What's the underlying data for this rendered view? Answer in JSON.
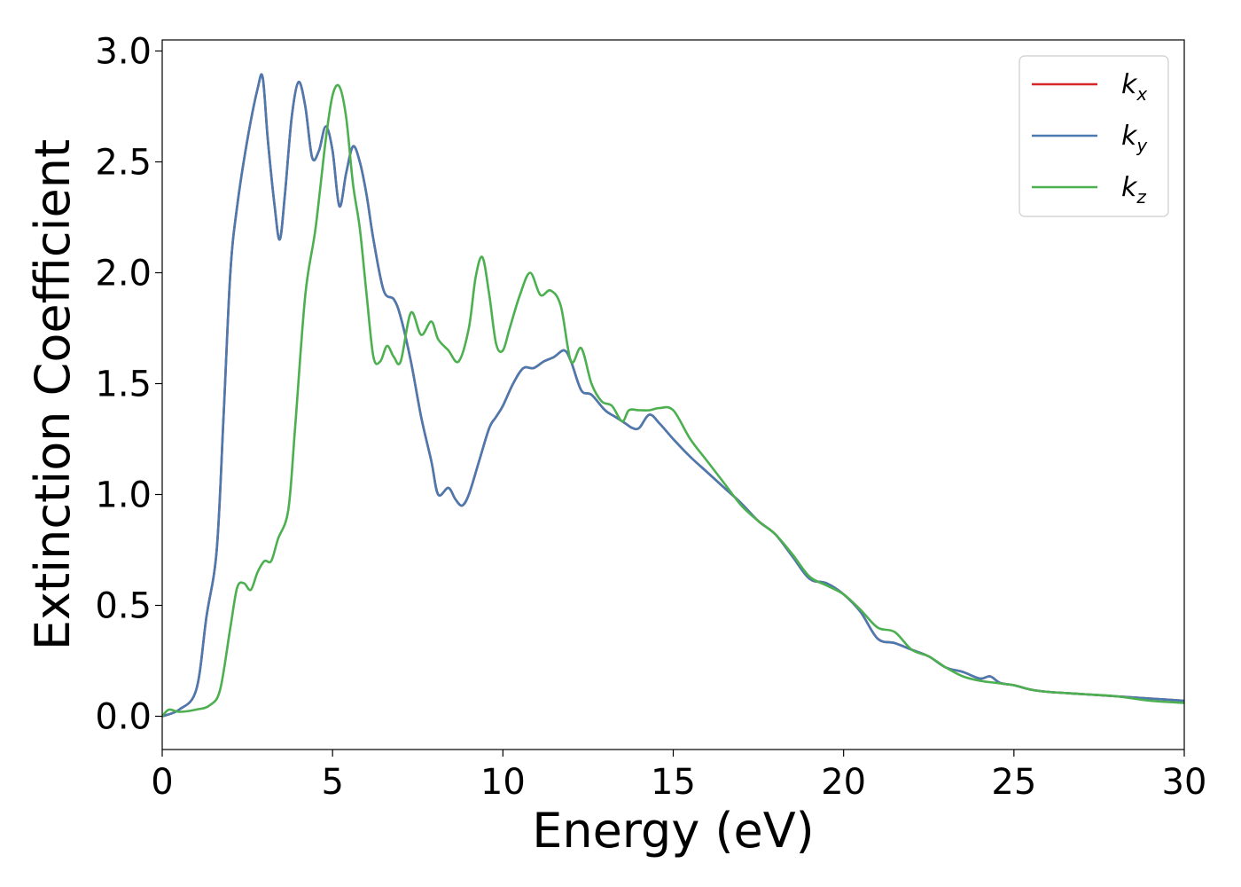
{
  "chart_data": {
    "type": "line",
    "title": "",
    "xlabel": "Energy (eV)",
    "ylabel": "Extinction Coefficient",
    "xlim": [
      0,
      30
    ],
    "ylim": [
      -0.15,
      3.05
    ],
    "xticks": [
      0,
      5,
      10,
      15,
      20,
      25,
      30
    ],
    "xtick_labels": [
      "0",
      "5",
      "10",
      "15",
      "20",
      "25",
      "30"
    ],
    "yticks": [
      0.0,
      0.5,
      1.0,
      1.5,
      2.0,
      2.5,
      3.0
    ],
    "ytick_labels": [
      "0.0",
      "0.5",
      "1.0",
      "1.5",
      "2.0",
      "2.5",
      "3.0"
    ],
    "grid": false,
    "legend_position": "top-right",
    "series": [
      {
        "name": "k_x",
        "legend_base": "k",
        "legend_sub": "x",
        "color": "#d62728",
        "x": [
          0,
          0.5,
          1.0,
          1.3,
          1.6,
          1.8,
          2.0,
          2.2,
          2.5,
          2.8,
          2.95,
          3.1,
          3.3,
          3.45,
          3.6,
          3.8,
          4.0,
          4.2,
          4.4,
          4.6,
          4.8,
          5.0,
          5.2,
          5.4,
          5.6,
          5.8,
          6.0,
          6.2,
          6.5,
          6.8,
          7.0,
          7.3,
          7.6,
          7.9,
          8.1,
          8.4,
          8.6,
          8.8,
          9.0,
          9.3,
          9.6,
          9.8,
          10.0,
          10.3,
          10.6,
          10.9,
          11.2,
          11.5,
          11.8,
          12.0,
          12.3,
          12.6,
          13.0,
          13.3,
          13.6,
          13.8,
          14.0,
          14.3,
          14.6,
          15.0,
          15.5,
          16.0,
          16.5,
          17.0,
          17.5,
          18.0,
          18.5,
          19.0,
          19.5,
          20.0,
          20.5,
          21.0,
          21.5,
          22.0,
          22.5,
          23.0,
          23.5,
          24.0,
          24.3,
          24.6,
          25.0,
          25.5,
          26.0,
          27.0,
          28.0,
          29.0,
          30.0
        ],
        "y": [
          0.0,
          0.03,
          0.12,
          0.45,
          0.75,
          1.35,
          2.0,
          2.3,
          2.6,
          2.83,
          2.88,
          2.6,
          2.3,
          2.15,
          2.35,
          2.7,
          2.86,
          2.75,
          2.52,
          2.55,
          2.66,
          2.55,
          2.3,
          2.45,
          2.57,
          2.5,
          2.35,
          2.15,
          1.92,
          1.88,
          1.8,
          1.6,
          1.35,
          1.15,
          1.0,
          1.03,
          0.98,
          0.95,
          1.0,
          1.15,
          1.3,
          1.35,
          1.4,
          1.5,
          1.57,
          1.57,
          1.6,
          1.62,
          1.65,
          1.6,
          1.47,
          1.45,
          1.38,
          1.35,
          1.32,
          1.3,
          1.3,
          1.36,
          1.32,
          1.25,
          1.17,
          1.1,
          1.03,
          0.96,
          0.88,
          0.82,
          0.72,
          0.62,
          0.6,
          0.55,
          0.47,
          0.35,
          0.33,
          0.3,
          0.27,
          0.22,
          0.2,
          0.17,
          0.18,
          0.15,
          0.14,
          0.12,
          0.11,
          0.1,
          0.09,
          0.08,
          0.07
        ]
      },
      {
        "name": "k_y",
        "legend_base": "k",
        "legend_sub": "y",
        "color": "#4a7ab0",
        "x": [
          0,
          0.5,
          1.0,
          1.3,
          1.6,
          1.8,
          2.0,
          2.2,
          2.5,
          2.8,
          2.95,
          3.1,
          3.3,
          3.45,
          3.6,
          3.8,
          4.0,
          4.2,
          4.4,
          4.6,
          4.8,
          5.0,
          5.2,
          5.4,
          5.6,
          5.8,
          6.0,
          6.2,
          6.5,
          6.8,
          7.0,
          7.3,
          7.6,
          7.9,
          8.1,
          8.4,
          8.6,
          8.8,
          9.0,
          9.3,
          9.6,
          9.8,
          10.0,
          10.3,
          10.6,
          10.9,
          11.2,
          11.5,
          11.8,
          12.0,
          12.3,
          12.6,
          13.0,
          13.3,
          13.6,
          13.8,
          14.0,
          14.3,
          14.6,
          15.0,
          15.5,
          16.0,
          16.5,
          17.0,
          17.5,
          18.0,
          18.5,
          19.0,
          19.5,
          20.0,
          20.5,
          21.0,
          21.5,
          22.0,
          22.5,
          23.0,
          23.5,
          24.0,
          24.3,
          24.6,
          25.0,
          25.5,
          26.0,
          27.0,
          28.0,
          29.0,
          30.0
        ],
        "y": [
          0.0,
          0.03,
          0.12,
          0.45,
          0.75,
          1.35,
          2.0,
          2.3,
          2.6,
          2.83,
          2.88,
          2.6,
          2.3,
          2.15,
          2.35,
          2.7,
          2.86,
          2.75,
          2.52,
          2.55,
          2.66,
          2.55,
          2.3,
          2.45,
          2.57,
          2.5,
          2.35,
          2.15,
          1.92,
          1.88,
          1.8,
          1.6,
          1.35,
          1.15,
          1.0,
          1.03,
          0.98,
          0.95,
          1.0,
          1.15,
          1.3,
          1.35,
          1.4,
          1.5,
          1.57,
          1.57,
          1.6,
          1.62,
          1.65,
          1.6,
          1.47,
          1.45,
          1.38,
          1.35,
          1.32,
          1.3,
          1.3,
          1.36,
          1.32,
          1.25,
          1.17,
          1.1,
          1.03,
          0.96,
          0.88,
          0.82,
          0.72,
          0.62,
          0.6,
          0.55,
          0.47,
          0.35,
          0.33,
          0.3,
          0.27,
          0.22,
          0.2,
          0.17,
          0.18,
          0.15,
          0.14,
          0.12,
          0.11,
          0.1,
          0.09,
          0.08,
          0.07
        ]
      },
      {
        "name": "k_z",
        "legend_base": "k",
        "legend_sub": "z",
        "color": "#4caf50",
        "x": [
          0,
          0.2,
          0.5,
          1.0,
          1.4,
          1.7,
          2.0,
          2.2,
          2.4,
          2.6,
          2.8,
          3.0,
          3.2,
          3.4,
          3.7,
          3.9,
          4.2,
          4.5,
          4.8,
          5.0,
          5.2,
          5.4,
          5.6,
          5.8,
          6.0,
          6.2,
          6.4,
          6.6,
          6.8,
          7.0,
          7.3,
          7.6,
          7.9,
          8.1,
          8.4,
          8.7,
          9.0,
          9.2,
          9.4,
          9.6,
          9.8,
          10.0,
          10.2,
          10.5,
          10.8,
          11.1,
          11.4,
          11.7,
          12.0,
          12.3,
          12.6,
          12.9,
          13.2,
          13.5,
          13.7,
          14.0,
          14.3,
          14.6,
          15.0,
          15.5,
          16.0,
          16.5,
          17.0,
          17.5,
          18.0,
          18.5,
          19.0,
          19.5,
          20.0,
          20.5,
          21.0,
          21.5,
          22.0,
          22.5,
          23.0,
          23.5,
          24.0,
          24.5,
          25.0,
          25.5,
          26.0,
          27.0,
          28.0,
          29.0,
          30.0
        ],
        "y": [
          0.0,
          0.03,
          0.02,
          0.03,
          0.05,
          0.12,
          0.4,
          0.58,
          0.6,
          0.57,
          0.65,
          0.7,
          0.7,
          0.8,
          0.93,
          1.3,
          1.9,
          2.2,
          2.6,
          2.8,
          2.84,
          2.7,
          2.4,
          2.2,
          1.9,
          1.62,
          1.6,
          1.67,
          1.62,
          1.6,
          1.82,
          1.72,
          1.78,
          1.7,
          1.65,
          1.6,
          1.75,
          1.98,
          2.07,
          1.9,
          1.68,
          1.65,
          1.75,
          1.9,
          2.0,
          1.9,
          1.92,
          1.85,
          1.6,
          1.66,
          1.5,
          1.42,
          1.4,
          1.33,
          1.38,
          1.38,
          1.38,
          1.39,
          1.38,
          1.25,
          1.15,
          1.05,
          0.95,
          0.88,
          0.82,
          0.73,
          0.63,
          0.59,
          0.55,
          0.48,
          0.4,
          0.38,
          0.3,
          0.27,
          0.22,
          0.18,
          0.16,
          0.15,
          0.14,
          0.12,
          0.11,
          0.1,
          0.09,
          0.07,
          0.06
        ]
      }
    ]
  }
}
